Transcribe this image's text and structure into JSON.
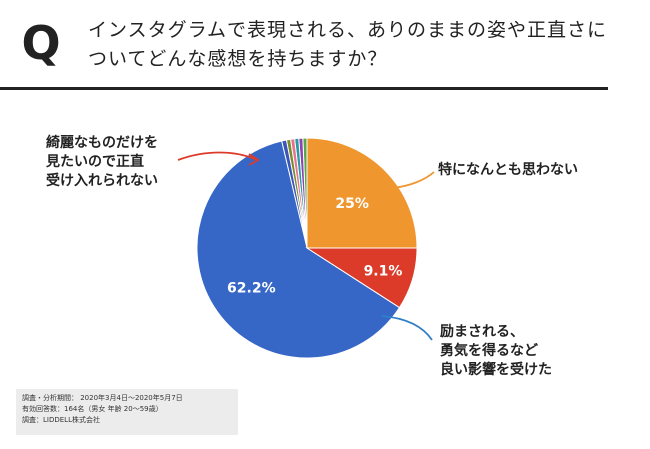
{
  "question": {
    "mark": "Q",
    "text_line1": "インスタグラムで表現される、ありのままの姿や正直さに",
    "text_line2": "ついてどんな感想を持ちますか？"
  },
  "callouts": {
    "negative": [
      "綺麗なものだけを",
      "見たいので正直",
      "受け入れられない"
    ],
    "neutral": [
      "特になんとも思わない"
    ],
    "positive": [
      "励まされる、",
      "勇気を得るなど",
      "良い影響を受けた"
    ]
  },
  "source": {
    "line1": "調査・分析期間： 2020年3月4日〜2020年5月7日",
    "line2": "有効回答数：164名（男女 年齢 20〜59歳）",
    "line3": "調査：LIDDELL株式会社"
  },
  "chart_data": {
    "type": "pie",
    "slices": [
      {
        "value": 25,
        "label": "25%",
        "color": "#f0962e"
      },
      {
        "value": 0.6,
        "label": "",
        "color": "#5aa64a"
      },
      {
        "value": 0.6,
        "label": "",
        "color": "#8e44ad"
      },
      {
        "value": 0.6,
        "label": "",
        "color": "#2b9aa8"
      },
      {
        "value": 0.6,
        "label": "",
        "color": "#e6748f"
      },
      {
        "value": 0.6,
        "label": "",
        "color": "#7a8c2e"
      },
      {
        "value": 0.7,
        "label": "",
        "color": "#3b55b8"
      },
      {
        "value": 62.2,
        "label": "62.2%",
        "color": "#3667c6"
      },
      {
        "value": 9.1,
        "label": "9.1%",
        "color": "#dc3b2a"
      }
    ],
    "callout_colors": {
      "negative": "#dc3b2a",
      "neutral": "#f0962e",
      "positive": "#2f7fc8"
    }
  }
}
